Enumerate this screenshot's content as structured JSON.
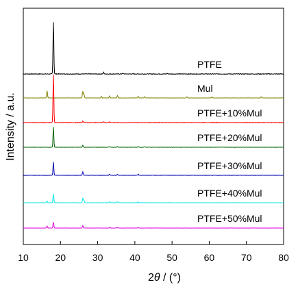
{
  "chart_data": {
    "type": "line",
    "xlabel": "2θ / (°)",
    "xlabel_parts": {
      "base": "2",
      "theta": "θ",
      "unit": " / (°)"
    },
    "ylabel": "Intensity / a.u.",
    "xlim": [
      10,
      80
    ],
    "xticks": [
      10,
      20,
      30,
      40,
      50,
      60,
      70,
      80
    ],
    "grid": false,
    "legend": "labels beside each trace, right side",
    "series": [
      {
        "name": "PTFE",
        "color": "#000000",
        "peaks": [
          [
            18.1,
            1.0
          ],
          [
            31.6,
            0.03
          ],
          [
            36.7,
            0.015
          ],
          [
            48.7,
            0.012
          ]
        ]
      },
      {
        "name": "Mul",
        "color": "#808000",
        "peaks": [
          [
            16.4,
            0.35
          ],
          [
            26.0,
            0.32
          ],
          [
            26.3,
            0.2
          ],
          [
            31.0,
            0.08
          ],
          [
            33.2,
            0.1
          ],
          [
            35.3,
            0.12
          ],
          [
            40.9,
            0.08
          ],
          [
            42.6,
            0.06
          ],
          [
            54.0,
            0.05
          ],
          [
            60.7,
            0.05
          ],
          [
            74.0,
            0.05
          ]
        ]
      },
      {
        "name": "PTFE+10%Mul",
        "color": "#ff0000",
        "peaks": [
          [
            18.1,
            1.0
          ],
          [
            26.0,
            0.03
          ],
          [
            31.6,
            0.02
          ],
          [
            33.2,
            0.02
          ]
        ]
      },
      {
        "name": "PTFE+20%Mul",
        "color": "#006400",
        "peaks": [
          [
            18.1,
            0.85
          ],
          [
            26.0,
            0.08
          ],
          [
            33.2,
            0.03
          ],
          [
            35.3,
            0.03
          ],
          [
            40.9,
            0.03
          ],
          [
            42.6,
            0.02
          ]
        ]
      },
      {
        "name": "PTFE+30%Mul",
        "color": "#0000b0",
        "peaks": [
          [
            18.1,
            0.55
          ],
          [
            26.0,
            0.15
          ],
          [
            33.2,
            0.05
          ],
          [
            35.3,
            0.05
          ],
          [
            40.9,
            0.05
          ]
        ]
      },
      {
        "name": "PTFE+40%Mul",
        "color": "#00e5e5",
        "peaks": [
          [
            16.4,
            0.1
          ],
          [
            18.1,
            0.52
          ],
          [
            26.0,
            0.28
          ],
          [
            26.3,
            0.15
          ],
          [
            33.2,
            0.06
          ],
          [
            35.3,
            0.06
          ],
          [
            40.9,
            0.05
          ]
        ]
      },
      {
        "name": "PTFE+50%Mul",
        "color": "#dd00dd",
        "peaks": [
          [
            16.4,
            0.15
          ],
          [
            18.1,
            0.42
          ],
          [
            26.0,
            0.18
          ],
          [
            33.2,
            0.06
          ],
          [
            35.3,
            0.06
          ],
          [
            40.9,
            0.05
          ]
        ]
      }
    ]
  }
}
